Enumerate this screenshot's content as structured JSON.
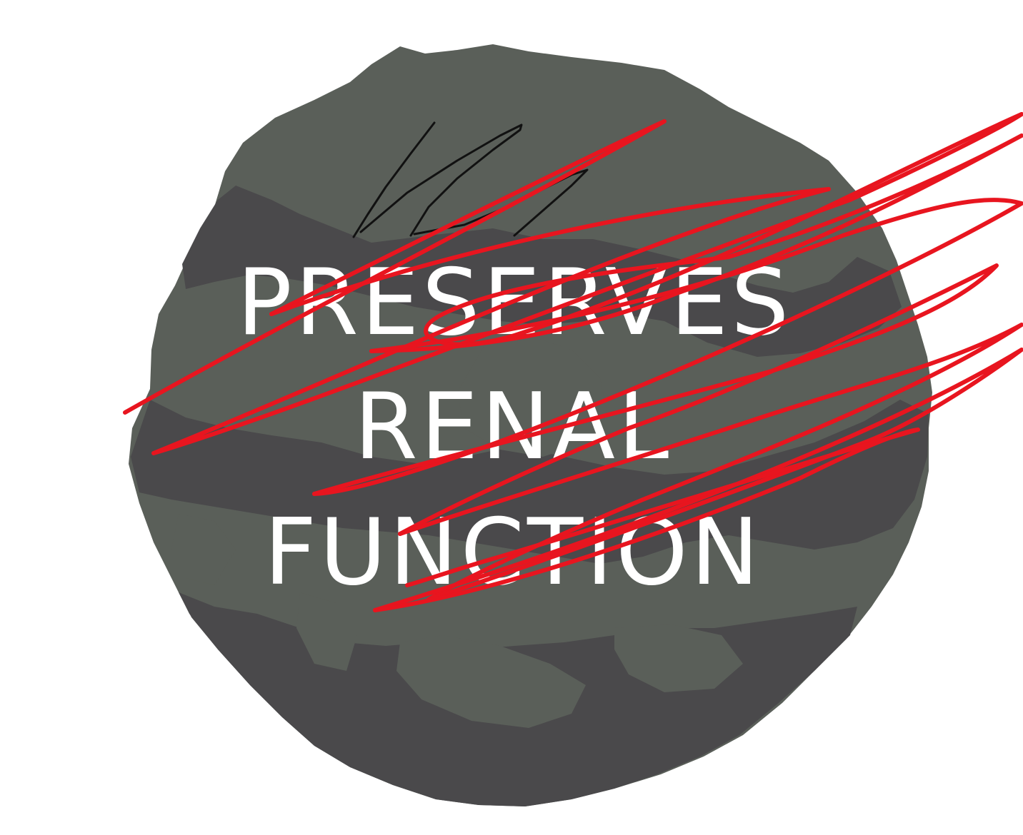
{
  "caption": {
    "line1": "PRESERVES",
    "line2": "RENAL",
    "line3": "FUNCTION"
  },
  "colors": {
    "background": "#ffffff",
    "rock_light": "#5a5f59",
    "rock_dark": "#4a494b",
    "caption_text": "#ffffff",
    "scribble": "#e8151f",
    "crack": "#111111"
  },
  "icons": {
    "stone": "kidney-stone-illustration",
    "scribble": "red-scribble-crossout",
    "crack": "black-crack-lines"
  }
}
